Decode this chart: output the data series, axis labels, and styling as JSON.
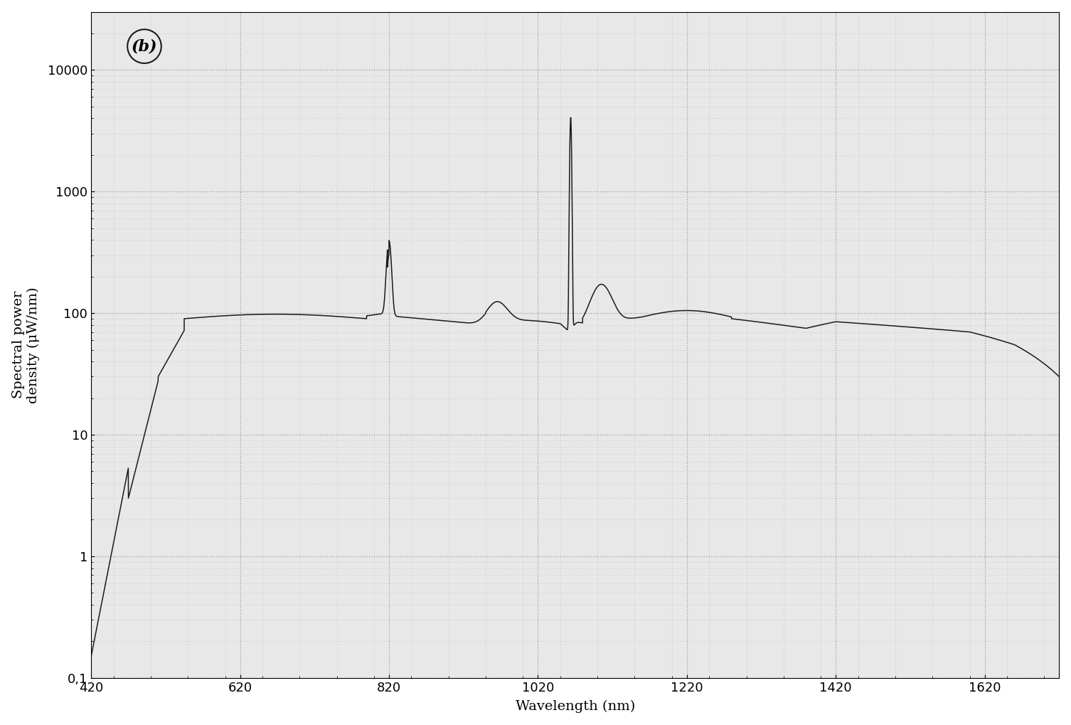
{
  "xlabel": "Wavelength (nm)",
  "ylabel": "Spectral power\ndensity (μW/nm)",
  "label_b": "(b)",
  "xlim": [
    420,
    1720
  ],
  "ylim": [
    0.1,
    30000
  ],
  "xticks": [
    420,
    620,
    820,
    1020,
    1220,
    1420,
    1620
  ],
  "ytick_vals": [
    0.1,
    1,
    10,
    100,
    1000,
    10000
  ],
  "ytick_labels": [
    "0,1",
    "1",
    "10",
    "100",
    "1000",
    "10000"
  ],
  "bg_color": "#f0f0f0",
  "plot_bg": "#e8e8e8",
  "line_color": "#1a1a1a",
  "grid_major_color": "#999999",
  "grid_minor_color": "#bbbbbb",
  "label_fontsize": 14,
  "tick_fontsize": 13,
  "annotation_fontsize": 16
}
